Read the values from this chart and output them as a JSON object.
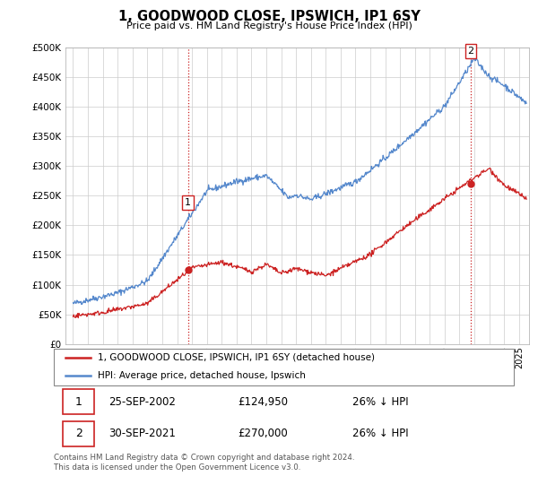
{
  "title": "1, GOODWOOD CLOSE, IPSWICH, IP1 6SY",
  "subtitle": "Price paid vs. HM Land Registry's House Price Index (HPI)",
  "ylabel_ticks": [
    "£0",
    "£50K",
    "£100K",
    "£150K",
    "£200K",
    "£250K",
    "£300K",
    "£350K",
    "£400K",
    "£450K",
    "£500K"
  ],
  "ytick_values": [
    0,
    50000,
    100000,
    150000,
    200000,
    250000,
    300000,
    350000,
    400000,
    450000,
    500000
  ],
  "ylim": [
    0,
    500000
  ],
  "xlim_start": 1994.5,
  "xlim_end": 2025.7,
  "hpi_color": "#5588cc",
  "price_color": "#cc2222",
  "sale1_x": 2002.73,
  "sale1_y": 124950,
  "sale1_label": "1",
  "sale2_x": 2021.75,
  "sale2_y": 270000,
  "sale2_label": "2",
  "legend_entry1": "1, GOODWOOD CLOSE, IPSWICH, IP1 6SY (detached house)",
  "legend_entry2": "HPI: Average price, detached house, Ipswich",
  "table_row1": [
    "1",
    "25-SEP-2002",
    "£124,950",
    "26% ↓ HPI"
  ],
  "table_row2": [
    "2",
    "30-SEP-2021",
    "£270,000",
    "26% ↓ HPI"
  ],
  "footnote": "Contains HM Land Registry data © Crown copyright and database right 2024.\nThis data is licensed under the Open Government Licence v3.0.",
  "background_color": "#ffffff",
  "grid_color": "#cccccc"
}
